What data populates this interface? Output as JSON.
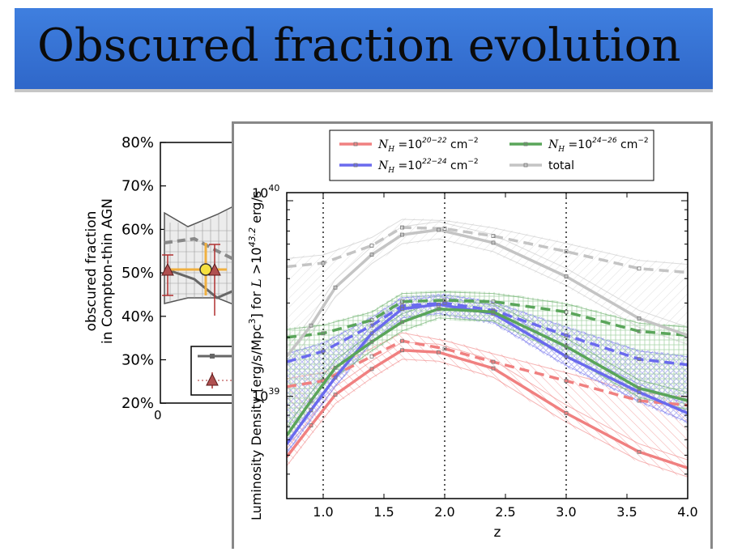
{
  "slide": {
    "title": "Obscured fraction evolution"
  },
  "left_chart": {
    "ylabel_line1": "obscured fraction",
    "ylabel_line2": "in Compton-thin AGN",
    "yticks": [
      "80%",
      "70%",
      "60%",
      "50%",
      "40%",
      "30%",
      "20%"
    ],
    "xtick": "0"
  },
  "chart_data": {
    "type": "line",
    "title": "",
    "xlabel": "z",
    "ylabel": "Luminosity Density [erg/s/Mpc³] for L >10^43.2 erg/s",
    "xlim": [
      0.7,
      4.0
    ],
    "ylim": [
      3e+38,
      1.1e+40
    ],
    "yscale": "log",
    "xticks": [
      "1.0",
      "1.5",
      "2.0",
      "2.5",
      "3.0",
      "3.5",
      "4.0"
    ],
    "ytick_labels": [
      "10^40",
      "10^39"
    ],
    "vlines": [
      1.0,
      2.0,
      3.0
    ],
    "legend_position": "top",
    "series": [
      {
        "name": "N_H = 10^20-22 cm^-2",
        "color": "#f08080",
        "solid": [
          [
            0.7,
            4.9e+38
          ],
          [
            0.9,
            7.1e+38
          ],
          [
            1.1,
            1.02e+39
          ],
          [
            1.4,
            1.38e+39
          ],
          [
            1.65,
            1.72e+39
          ],
          [
            1.95,
            1.68e+39
          ],
          [
            2.4,
            1.39e+39
          ],
          [
            3.0,
            8.2e+38
          ],
          [
            3.6,
            5.2e+38
          ],
          [
            4.0,
            4.3e+38
          ]
        ],
        "dashed": [
          [
            0.7,
            1.12e+39
          ],
          [
            1.0,
            1.2e+39
          ],
          [
            1.4,
            1.6e+39
          ],
          [
            1.65,
            1.92e+39
          ],
          [
            2.0,
            1.75e+39
          ],
          [
            2.4,
            1.5e+39
          ],
          [
            3.0,
            1.2e+39
          ],
          [
            3.6,
            9.5e+38
          ],
          [
            4.0,
            9e+38
          ]
        ]
      },
      {
        "name": "N_H = 10^22-24 cm^-2",
        "color": "#6a6aee",
        "solid": [
          [
            0.7,
            5.7e+38
          ],
          [
            0.9,
            8.5e+38
          ],
          [
            1.1,
            1.25e+39
          ],
          [
            1.4,
            2.1e+39
          ],
          [
            1.65,
            2.8e+39
          ],
          [
            1.95,
            2.95e+39
          ],
          [
            2.4,
            2.65e+39
          ],
          [
            3.0,
            1.6e+39
          ],
          [
            3.6,
            1.05e+39
          ],
          [
            4.0,
            8.2e+38
          ]
        ],
        "dashed": [
          [
            0.7,
            1.5e+39
          ],
          [
            1.0,
            1.7e+39
          ],
          [
            1.4,
            2.3e+39
          ],
          [
            1.65,
            2.9e+39
          ],
          [
            2.0,
            3e+39
          ],
          [
            2.4,
            2.75e+39
          ],
          [
            3.0,
            2.05e+39
          ],
          [
            3.6,
            1.55e+39
          ],
          [
            4.0,
            1.45e+39
          ]
        ]
      },
      {
        "name": "N_H = 10^24-26 cm^-2",
        "color": "#5aa55a",
        "solid": [
          [
            0.7,
            6.3e+38
          ],
          [
            0.9,
            9.5e+38
          ],
          [
            1.1,
            1.4e+39
          ],
          [
            1.4,
            1.9e+39
          ],
          [
            1.65,
            2.4e+39
          ],
          [
            1.95,
            2.8e+39
          ],
          [
            2.4,
            2.7e+39
          ],
          [
            3.0,
            1.8e+39
          ],
          [
            3.6,
            1.1e+39
          ],
          [
            4.0,
            9.5e+38
          ]
        ],
        "dashed": [
          [
            0.7,
            2e+39
          ],
          [
            1.0,
            2.1e+39
          ],
          [
            1.4,
            2.45e+39
          ],
          [
            1.65,
            3.05e+39
          ],
          [
            2.0,
            3.1e+39
          ],
          [
            2.4,
            3.05e+39
          ],
          [
            3.0,
            2.7e+39
          ],
          [
            3.6,
            2.15e+39
          ],
          [
            4.0,
            2.05e+39
          ]
        ]
      },
      {
        "name": "total",
        "color": "#c4c4c4",
        "solid": [
          [
            0.7,
            1.6e+39
          ],
          [
            0.9,
            2.3e+39
          ],
          [
            1.1,
            3.6e+39
          ],
          [
            1.4,
            5.3e+39
          ],
          [
            1.65,
            6.7e+39
          ],
          [
            1.95,
            7.1e+39
          ],
          [
            2.4,
            6.1e+39
          ],
          [
            3.0,
            4.1e+39
          ],
          [
            3.6,
            2.5e+39
          ],
          [
            4.0,
            2.05e+39
          ]
        ],
        "dashed": [
          [
            0.7,
            4.6e+39
          ],
          [
            1.0,
            4.8e+39
          ],
          [
            1.4,
            5.9e+39
          ],
          [
            1.65,
            7.3e+39
          ],
          [
            2.0,
            7.2e+39
          ],
          [
            2.4,
            6.6e+39
          ],
          [
            3.0,
            5.5e+39
          ],
          [
            3.6,
            4.5e+39
          ],
          [
            4.0,
            4.3e+39
          ]
        ]
      }
    ]
  },
  "legend": [
    {
      "prefix": "N",
      "sub": "H",
      "mid": " =10",
      "sup": "20−22",
      "unit": "cm",
      "unitsup": "−2",
      "color": "#f08080"
    },
    {
      "prefix": "N",
      "sub": "H",
      "mid": " =10",
      "sup": "24−26",
      "unit": "cm",
      "unitsup": "−2",
      "color": "#5aa55a"
    },
    {
      "prefix": "N",
      "sub": "H",
      "mid": " =10",
      "sup": "22−24",
      "unit": "cm",
      "unitsup": "−2",
      "color": "#6a6aee"
    },
    {
      "label": "total",
      "color": "#c4c4c4"
    }
  ],
  "colors": {
    "title_bar": "#3575d6",
    "frame": "#888888"
  }
}
